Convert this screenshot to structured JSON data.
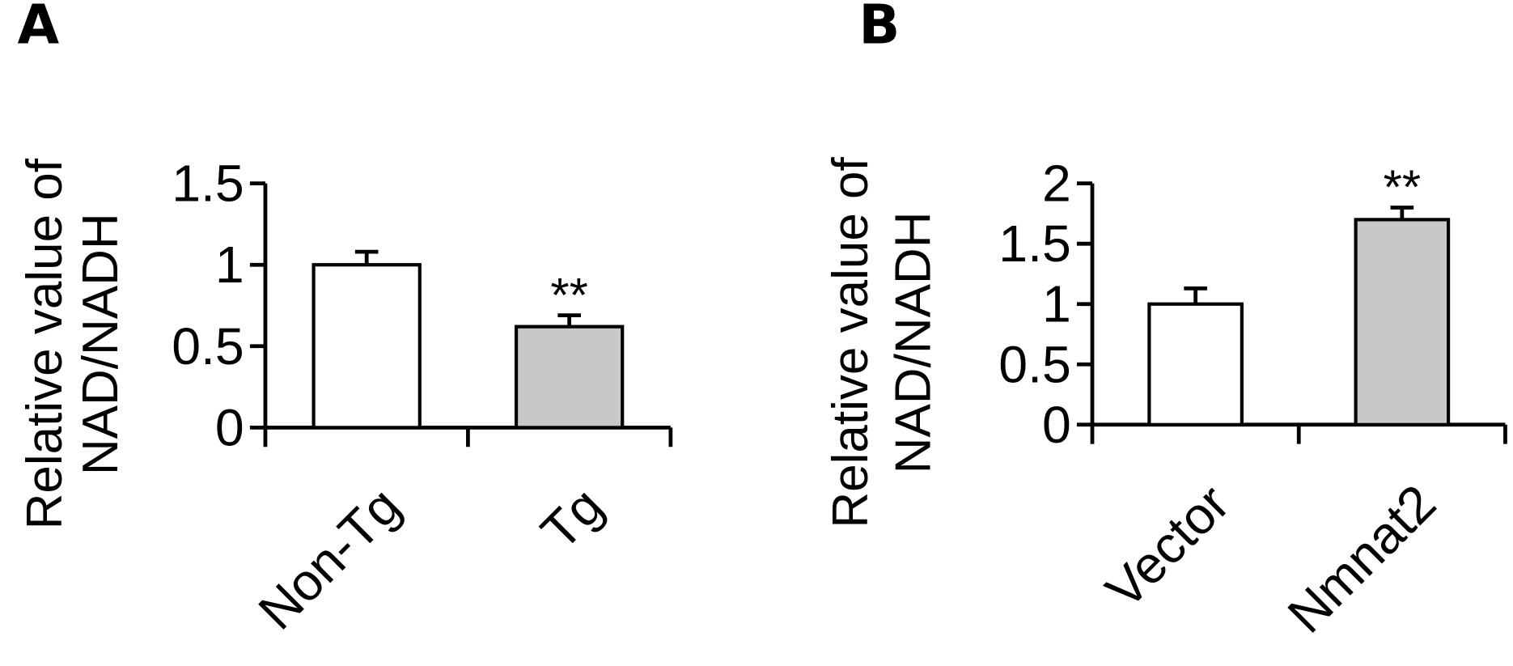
{
  "chart_data": [
    {
      "type": "bar",
      "panel": "A",
      "ylabel": [
        "Relative value of",
        "NAD/NADH"
      ],
      "categories": [
        "Non-Tg",
        "Tg"
      ],
      "values": [
        1.0,
        0.62
      ],
      "errors": [
        0.08,
        0.07
      ],
      "colors": [
        "#ffffff",
        "#c8c8c8"
      ],
      "significance": [
        null,
        "**"
      ],
      "ylim": [
        0,
        1.5
      ],
      "yticks": [
        0,
        0.5,
        1,
        1.5
      ]
    },
    {
      "type": "bar",
      "panel": "B",
      "ylabel": [
        "Relative value of",
        "NAD/NADH"
      ],
      "categories": [
        "Vector",
        "Nmnat2"
      ],
      "values": [
        1.0,
        1.7
      ],
      "errors": [
        0.13,
        0.1
      ],
      "colors": [
        "#ffffff",
        "#c8c8c8"
      ],
      "significance": [
        null,
        "**"
      ],
      "ylim": [
        0,
        2
      ],
      "yticks": [
        0,
        0.5,
        1,
        1.5,
        2
      ]
    }
  ]
}
